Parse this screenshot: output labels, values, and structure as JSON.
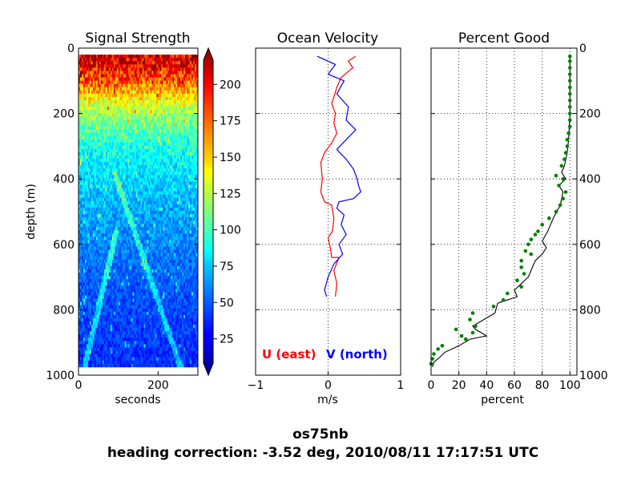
{
  "figure": {
    "suptitle_line1": "os75nb",
    "suptitle_line2": "heading correction: -3.52 deg, 2010/08/11 17:17:51 UTC"
  },
  "chart_data": [
    {
      "type": "heatmap",
      "title": "Signal Strength",
      "xlabel": "seconds",
      "ylabel": "depth (m)",
      "xlim": [
        0,
        300
      ],
      "ylim": [
        1000,
        0
      ],
      "xticks": [
        "0",
        "200"
      ],
      "yticks": [
        "0",
        "200",
        "400",
        "600",
        "800",
        "1000"
      ],
      "colorbar": {
        "range": [
          0,
          225
        ],
        "ticks": [
          "25",
          "50",
          "75",
          "100",
          "125",
          "150",
          "175",
          "200"
        ],
        "colormap": "jet"
      },
      "data_extent": {
        "x": [
          0,
          300
        ],
        "depth": [
          20,
          975
        ]
      },
      "value_profile": [
        {
          "depth": 20,
          "value": 205
        },
        {
          "depth": 60,
          "value": 195
        },
        {
          "depth": 100,
          "value": 178
        },
        {
          "depth": 150,
          "value": 145
        },
        {
          "depth": 200,
          "value": 118
        },
        {
          "depth": 260,
          "value": 100
        },
        {
          "depth": 320,
          "value": 86
        },
        {
          "depth": 400,
          "value": 76
        },
        {
          "depth": 500,
          "value": 66
        },
        {
          "depth": 600,
          "value": 57
        },
        {
          "depth": 700,
          "value": 50
        },
        {
          "depth": 800,
          "value": 44
        },
        {
          "depth": 900,
          "value": 40
        },
        {
          "depth": 975,
          "value": 38
        }
      ]
    },
    {
      "type": "line",
      "title": "Ocean Velocity",
      "xlabel": "m/s",
      "xlim": [
        -1,
        1
      ],
      "ylim": [
        1000,
        0
      ],
      "xticks": [
        "−1",
        "0",
        "1"
      ],
      "grid": true,
      "legend": [
        {
          "name": "U (east)",
          "color": "#ff0000"
        },
        {
          "name": "V (north)",
          "color": "#0000ff"
        }
      ],
      "series": [
        {
          "name": "U (east)",
          "color": "#ff0000",
          "points": [
            [
              0.38,
              25
            ],
            [
              0.28,
              40
            ],
            [
              0.34,
              60
            ],
            [
              0.18,
              90
            ],
            [
              0.12,
              120
            ],
            [
              0.08,
              150
            ],
            [
              0.05,
              170
            ],
            [
              0.1,
              200
            ],
            [
              0.08,
              230
            ],
            [
              0.12,
              260
            ],
            [
              0.05,
              290
            ],
            [
              -0.05,
              320
            ],
            [
              -0.1,
              350
            ],
            [
              -0.08,
              400
            ],
            [
              -0.1,
              440
            ],
            [
              -0.05,
              470
            ],
            [
              0.05,
              480
            ],
            [
              0.08,
              520
            ],
            [
              0.06,
              560
            ],
            [
              0.0,
              580
            ],
            [
              0.03,
              610
            ],
            [
              0.05,
              640
            ],
            [
              0.15,
              640
            ],
            [
              0.08,
              680
            ],
            [
              0.12,
              720
            ],
            [
              0.1,
              760
            ]
          ]
        },
        {
          "name": "V (north)",
          "color": "#0000ff",
          "points": [
            [
              -0.15,
              25
            ],
            [
              0.1,
              50
            ],
            [
              0.0,
              80
            ],
            [
              0.22,
              100
            ],
            [
              0.12,
              140
            ],
            [
              0.28,
              180
            ],
            [
              0.25,
              220
            ],
            [
              0.38,
              250
            ],
            [
              0.25,
              280
            ],
            [
              0.12,
              310
            ],
            [
              0.25,
              340
            ],
            [
              0.35,
              370
            ],
            [
              0.4,
              400
            ],
            [
              0.42,
              420
            ],
            [
              0.45,
              440
            ],
            [
              0.35,
              460
            ],
            [
              0.15,
              470
            ],
            [
              0.12,
              490
            ],
            [
              0.22,
              510
            ],
            [
              0.18,
              540
            ],
            [
              0.25,
              570
            ],
            [
              0.15,
              600
            ],
            [
              0.2,
              630
            ],
            [
              0.08,
              660
            ],
            [
              0.0,
              700
            ],
            [
              -0.05,
              740
            ],
            [
              -0.02,
              760
            ]
          ]
        }
      ]
    },
    {
      "type": "scatter",
      "title": "Percent Good",
      "xlabel": "percent",
      "xlim": [
        0,
        105
      ],
      "ylim": [
        1000,
        0
      ],
      "xticks": [
        "0",
        "20",
        "40",
        "60",
        "80",
        "100"
      ],
      "yticks": [
        "0",
        "200",
        "400",
        "600",
        "800",
        "1000"
      ],
      "grid": true,
      "series": [
        {
          "name": "",
          "type": "line",
          "color": "#000000",
          "points": [
            [
              100,
              25
            ],
            [
              100,
              100
            ],
            [
              100,
              200
            ],
            [
              99,
              280
            ],
            [
              98,
              320
            ],
            [
              96,
              360
            ],
            [
              94,
              380
            ],
            [
              97,
              400
            ],
            [
              92,
              420
            ],
            [
              95,
              440
            ],
            [
              93,
              480
            ],
            [
              88,
              520
            ],
            [
              84,
              560
            ],
            [
              80,
              590
            ],
            [
              83,
              610
            ],
            [
              80,
              630
            ],
            [
              75,
              650
            ],
            [
              72,
              680
            ],
            [
              70,
              700
            ],
            [
              65,
              720
            ],
            [
              60,
              740
            ],
            [
              62,
              760
            ],
            [
              48,
              780
            ],
            [
              46,
              810
            ],
            [
              38,
              830
            ],
            [
              30,
              850
            ],
            [
              32,
              860
            ],
            [
              40,
              880
            ],
            [
              28,
              890
            ],
            [
              20,
              910
            ],
            [
              10,
              930
            ],
            [
              5,
              950
            ],
            [
              2,
              960
            ],
            [
              1,
              975
            ]
          ]
        },
        {
          "name": "",
          "type": "scatter",
          "color": "#007f00",
          "points": [
            [
              100,
              25
            ],
            [
              100,
              40
            ],
            [
              100,
              60
            ],
            [
              100,
              80
            ],
            [
              100,
              100
            ],
            [
              100,
              120
            ],
            [
              100,
              140
            ],
            [
              100,
              160
            ],
            [
              100,
              180
            ],
            [
              100,
              200
            ],
            [
              100,
              220
            ],
            [
              100,
              240
            ],
            [
              99,
              260
            ],
            [
              98,
              280
            ],
            [
              98,
              300
            ],
            [
              97,
              320
            ],
            [
              96,
              340
            ],
            [
              94,
              360
            ],
            [
              90,
              390
            ],
            [
              95,
              400
            ],
            [
              92,
              420
            ],
            [
              97,
              440
            ],
            [
              95,
              460
            ],
            [
              93,
              480
            ],
            [
              90,
              500
            ],
            [
              85,
              520
            ],
            [
              80,
              540
            ],
            [
              77,
              560
            ],
            [
              75,
              570
            ],
            [
              72,
              585
            ],
            [
              70,
              600
            ],
            [
              68,
              620
            ],
            [
              72,
              630
            ],
            [
              65,
              650
            ],
            [
              65,
              670
            ],
            [
              67,
              690
            ],
            [
              62,
              710
            ],
            [
              65,
              730
            ],
            [
              55,
              750
            ],
            [
              52,
              770
            ],
            [
              45,
              790
            ],
            [
              30,
              810
            ],
            [
              28,
              830
            ],
            [
              32,
              850
            ],
            [
              18,
              860
            ],
            [
              30,
              870
            ],
            [
              22,
              880
            ],
            [
              25,
              890
            ],
            [
              8,
              910
            ],
            [
              5,
              920
            ],
            [
              2,
              935
            ],
            [
              1,
              950
            ],
            [
              0,
              965
            ]
          ]
        }
      ]
    }
  ]
}
